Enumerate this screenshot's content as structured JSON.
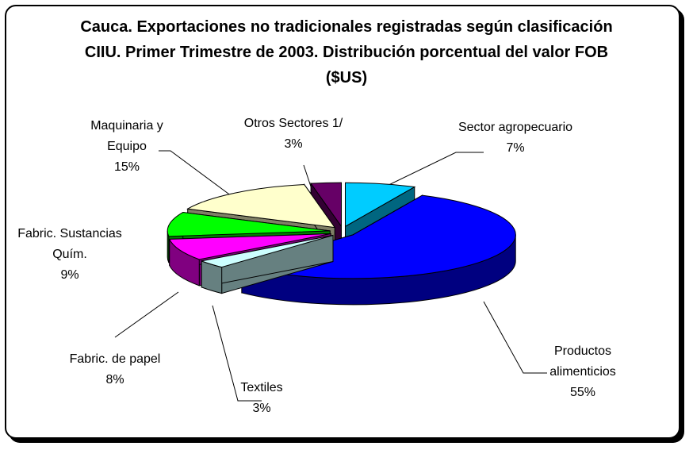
{
  "chart_data": {
    "type": "pie",
    "title": "Cauca.  Exportaciones no tradicionales registradas según clasificación CIIU.  Primer Trimestre de 2003.  Distribución porcentual del valor FOB ($US)",
    "categories": [
      "Sector agropecuario",
      "Productos alimenticios",
      "Textiles",
      "Fabric. de papel",
      "Fabric. Sustancias Quím.",
      "Maquinaria y Equipo",
      "Otros Sectores 1/"
    ],
    "values": [
      7,
      55,
      3,
      8,
      9,
      15,
      3
    ],
    "value_labels": [
      "7%",
      "55%",
      "3%",
      "8%",
      "9%",
      "15%",
      "3%"
    ],
    "colors": [
      "#00ccff",
      "#0000ff",
      "#ccffff",
      "#ff00ff",
      "#00ff00",
      "#ffffcc",
      "#660066"
    ]
  }
}
